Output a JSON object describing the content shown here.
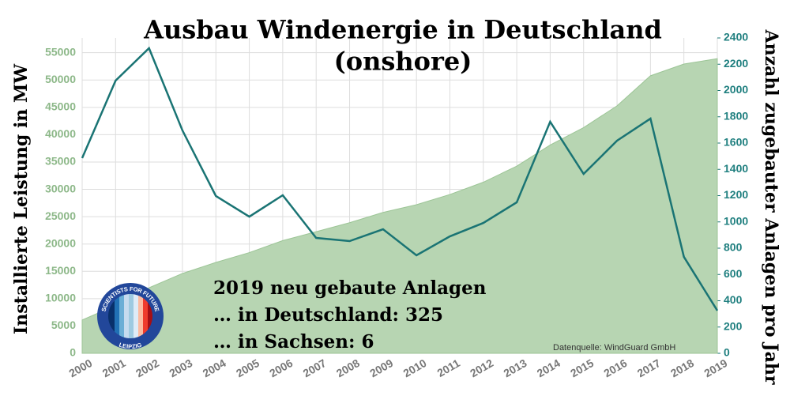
{
  "chart_data": {
    "type": "combo",
    "title": "Ausbau Windenergie in Deutschland",
    "subtitle": "(onshore)",
    "y_label": "Installierte Leistung in MW",
    "y2_label": "Anzahl zugebauter Anlagen pro Jahr",
    "categories": [
      "2000",
      "2001",
      "2002",
      "2003",
      "2004",
      "2005",
      "2006",
      "2007",
      "2008",
      "2009",
      "2010",
      "2011",
      "2012",
      "2013",
      "2014",
      "2015",
      "2016",
      "2017",
      "2018",
      "2019"
    ],
    "series": [
      {
        "type": "area",
        "color": "#b7d5b2",
        "values": [
          6095,
          8754,
          11994,
          14609,
          16629,
          18428,
          20622,
          22247,
          23895,
          25777,
          27191,
          29060,
          31304,
          34250,
          38116,
          41297,
          45280,
          50777,
          52931,
          53912
        ]
      },
      {
        "type": "line",
        "axis": "y2",
        "color": "#1a7474",
        "values": [
          1486,
          2075,
          2322,
          1696,
          1197,
          1040,
          1203,
          878,
          854,
          944,
          746,
          890,
          992,
          1149,
          1762,
          1365,
          1618,
          1786,
          734,
          325
        ]
      }
    ],
    "ylim": [
      0,
      57700
    ],
    "yticks": [
      0,
      5000,
      10000,
      15000,
      20000,
      25000,
      30000,
      35000,
      40000,
      45000,
      50000,
      55000
    ],
    "y2lim": [
      0,
      2400
    ],
    "y2ticks": [
      0,
      200,
      400,
      600,
      800,
      1000,
      1200,
      1400,
      1600,
      1800,
      2000,
      2200,
      2400
    ],
    "grid": true,
    "annotations": [
      "2019 neu gebaute Anlagen",
      "… in Deutschland: 325",
      "… in Sachsen: 6"
    ],
    "source": "Datenquelle: WindGuard GmbH"
  },
  "logo": {
    "top": "SCIENTISTS FOR FUTURE",
    "bottom": "LEIPZIG"
  }
}
